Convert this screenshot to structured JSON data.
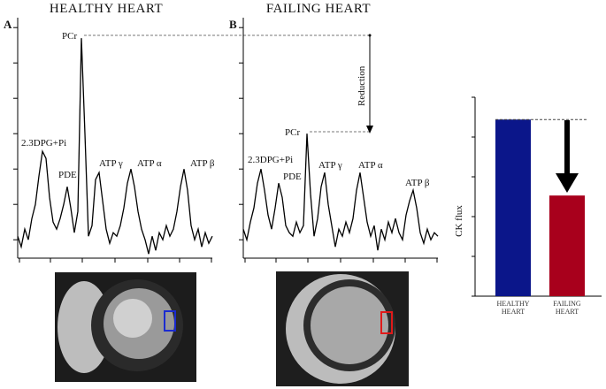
{
  "chart_data": [
    {
      "type": "line",
      "panel": "A",
      "title": "HEALTHY HEART",
      "color": "#000000",
      "annotations": [
        "PCr",
        "2.3DPG+Pi",
        "PDE",
        "ATP γ",
        "ATP α",
        "ATP β"
      ],
      "values": [
        0.1,
        -0.2,
        0.3,
        0.0,
        0.6,
        1.0,
        1.8,
        2.5,
        2.3,
        1.2,
        0.5,
        0.3,
        0.6,
        1.0,
        1.5,
        0.9,
        0.2,
        0.8,
        5.7,
        3.0,
        0.1,
        0.4,
        1.7,
        1.9,
        1.1,
        0.3,
        -0.1,
        0.2,
        0.1,
        0.4,
        0.9,
        1.6,
        2.0,
        1.5,
        0.8,
        0.3,
        0.0,
        -0.4,
        0.1,
        -0.3,
        0.2,
        0.0,
        0.4,
        0.1,
        0.3,
        0.8,
        1.5,
        2.0,
        1.4,
        0.4,
        0.0,
        0.3,
        -0.2,
        0.2,
        -0.1,
        0.1
      ],
      "xlim": [
        0,
        55
      ],
      "xticks": [
        0.5,
        9.25,
        18.25,
        27.5,
        36.75,
        45.75,
        54.75
      ],
      "ylim": [
        -0.52,
        6.28
      ],
      "yticks": [
        0,
        1,
        2,
        3,
        4,
        5,
        6
      ]
    },
    {
      "type": "line",
      "panel": "B",
      "title": "FAILING HEART",
      "color": "#000000",
      "annotations": [
        "PCr",
        "2.3DPG+Pi",
        "PDE",
        "ATP γ",
        "ATP α",
        "ATP β",
        "Reduction"
      ],
      "values": [
        0.3,
        0.0,
        0.5,
        0.9,
        1.6,
        2.0,
        1.4,
        0.7,
        0.3,
        0.9,
        1.6,
        1.2,
        0.4,
        0.2,
        0.1,
        0.5,
        0.2,
        0.4,
        3.0,
        1.3,
        0.1,
        0.6,
        1.5,
        1.9,
        1.0,
        0.4,
        -0.2,
        0.3,
        0.1,
        0.5,
        0.2,
        0.6,
        1.4,
        1.9,
        1.2,
        0.5,
        0.1,
        0.4,
        -0.3,
        0.3,
        0.0,
        0.5,
        0.2,
        0.6,
        0.2,
        0.0,
        0.7,
        1.1,
        1.4,
        0.9,
        0.2,
        -0.1,
        0.3,
        0.0,
        0.2,
        0.1
      ],
      "xlim": [
        0,
        55
      ],
      "xticks": [
        0.5,
        9.25,
        18.25,
        27.5,
        36.75,
        45.75,
        54.75
      ],
      "ylim": [
        -0.52,
        6.28
      ],
      "yticks": [
        0,
        1,
        2,
        3,
        4,
        5,
        6
      ]
    },
    {
      "type": "bar",
      "ylabel": "CK flux",
      "categories": [
        "HEALTHY HEART",
        "FAILING HEART"
      ],
      "values": [
        4.44,
        2.53
      ],
      "colors": [
        "#0b168a",
        "#a8001c"
      ],
      "ylim": [
        0,
        5
      ],
      "yticks": [
        0,
        1,
        2,
        3,
        4,
        5
      ]
    }
  ]
}
